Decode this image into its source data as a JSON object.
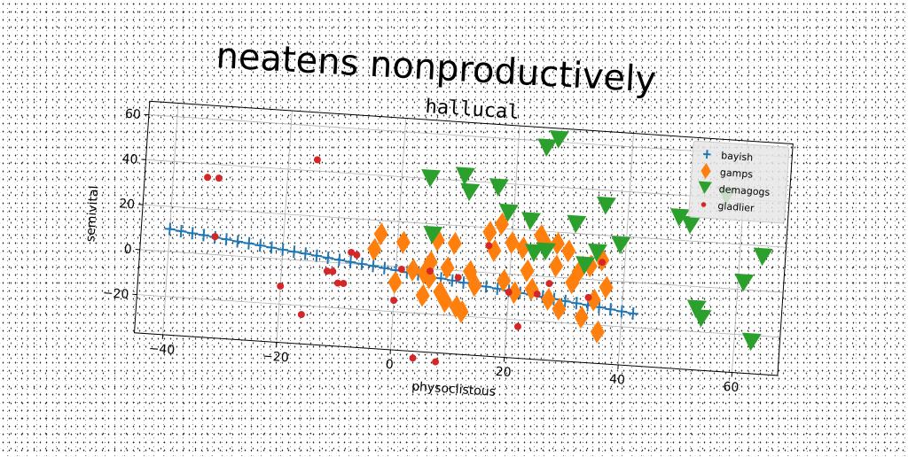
{
  "suptitle": "neatens nonproductively",
  "chart_data": {
    "type": "scatter",
    "title": "hallucal",
    "xlabel": "physoclistous",
    "ylabel": "semivital",
    "xlim": [
      -45,
      68
    ],
    "ylim": [
      -37,
      66
    ],
    "xticks": [
      -40,
      -20,
      0,
      20,
      40,
      60
    ],
    "yticks": [
      -20,
      0,
      20,
      40,
      60
    ],
    "grid": true,
    "legend_position": "top-right",
    "series": [
      {
        "name": "bayish",
        "marker": "plus",
        "color": "#1f77b4",
        "x": [
          -40,
          -38,
          -36,
          -34,
          -32,
          -30,
          -28,
          -26,
          -24,
          -22,
          -20,
          -18,
          -16,
          -14,
          -12,
          -10,
          -8,
          -6,
          -4,
          -2,
          0,
          2,
          4,
          6,
          8,
          10,
          12,
          14,
          16,
          18,
          20,
          22,
          24,
          26,
          28,
          30,
          32,
          34,
          36,
          38,
          40,
          42
        ],
        "y": [
          10,
          9.4,
          8.8,
          8.3,
          7.7,
          7.1,
          6.5,
          6.0,
          5.4,
          4.8,
          4.2,
          3.6,
          3.1,
          2.5,
          1.9,
          1.3,
          0.7,
          0.2,
          -0.4,
          -1.0,
          -1.6,
          -2.2,
          -2.8,
          -3.3,
          -3.9,
          -4.5,
          -5.1,
          -5.6,
          -6.2,
          -6.8,
          -7.4,
          -8.0,
          -8.5,
          -9.1,
          -9.7,
          -10.3,
          -10.9,
          -11.4,
          -12.0,
          -12.6,
          -13.2,
          -13.8
        ]
      },
      {
        "name": "gamps",
        "marker": "diamond",
        "color": "#ff7f0e",
        "x": [
          -4,
          -3,
          0,
          1,
          3,
          5,
          5,
          6,
          6,
          7,
          8,
          9,
          9,
          10,
          11,
          12,
          13,
          14,
          16,
          17,
          18,
          19,
          20,
          21,
          22,
          23,
          24,
          25,
          26,
          27,
          28,
          28,
          29,
          30,
          31,
          32,
          33,
          34,
          35,
          36,
          36,
          37
        ],
        "y": [
          7,
          14,
          -7,
          11,
          -1,
          -2,
          -12,
          3,
          -4,
          13,
          -10,
          1,
          -14,
          12,
          -16,
          -18,
          0,
          -6,
          18,
          10,
          22,
          -3,
          14,
          -8,
          12,
          2,
          -6,
          18,
          14,
          -10,
          5,
          15,
          -14,
          12,
          -2,
          3,
          -17,
          6,
          -9,
          9,
          -23,
          -3
        ],
        "labels": []
      },
      {
        "name": "demagogs",
        "marker": "triangle_down",
        "color": "#2ca02c",
        "x": [
          5,
          6,
          11,
          12,
          17,
          19,
          23,
          24,
          25,
          26,
          27,
          31,
          33,
          35,
          36,
          39,
          49,
          51,
          53,
          54,
          57,
          61,
          63,
          64
        ],
        "y": [
          40,
          15,
          42,
          35,
          38,
          27,
          24,
          10,
          57,
          11,
          61,
          24,
          6,
          12,
          33,
          16,
          30,
          27,
          -10,
          -14,
          41,
          3,
          -23,
          15
        ],
        "labels": []
      },
      {
        "name": "gladlier",
        "marker": "circle",
        "color": "#d62728",
        "x": [
          -34,
          -32,
          -32,
          -20,
          -16,
          -15,
          -12,
          -11,
          -10,
          -9,
          -8,
          -7,
          0,
          1,
          4,
          6,
          8,
          11,
          16,
          20,
          22,
          25,
          27,
          34,
          36
        ],
        "y": [
          34,
          34,
          8,
          -12,
          -24,
          45,
          -4,
          -4,
          -9,
          -9,
          5,
          4,
          -15,
          -1,
          -40,
          -1,
          -41,
          -3,
          12,
          -8,
          -23,
          -8,
          -3,
          -8,
          8
        ],
        "labels": []
      }
    ]
  },
  "colors": {
    "axes_frame": "#000000",
    "grid": "#b0b0b0",
    "legend_bg": "#e6e6e6"
  }
}
